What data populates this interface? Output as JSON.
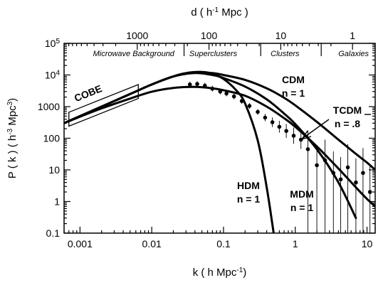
{
  "chart_data": {
    "type": "line",
    "xlabel": {
      "base": "k  ( h  Mpc",
      "sup": "-1",
      "tail": ")"
    },
    "ylabel": {
      "base": "P ( k )  ( h",
      "sup": "-3",
      "mid": " Mpc",
      "sup2": "3",
      "tail": ")"
    },
    "top_axis_label": {
      "base": "d  ( h",
      "sup": "-1",
      "tail": " Mpc )"
    },
    "x_scale": "log",
    "y_scale": "log",
    "xlim": [
      0.0006,
      13
    ],
    "ylim": [
      0.1,
      100000
    ],
    "x_ticks": [
      {
        "value": 0.001,
        "label": "0.001"
      },
      {
        "value": 0.01,
        "label": "0.01"
      },
      {
        "value": 0.1,
        "label": "0.1"
      },
      {
        "value": 1,
        "label": "1"
      },
      {
        "value": 10,
        "label": "10"
      }
    ],
    "y_ticks": [
      {
        "value": 0.1,
        "label": "0.1"
      },
      {
        "value": 1,
        "label": "1"
      },
      {
        "value": 10,
        "label": "10"
      },
      {
        "value": 100,
        "label": "100"
      },
      {
        "value": 1000,
        "label": "1000"
      },
      {
        "value": 10000,
        "label": "10",
        "sup": "4"
      },
      {
        "value": 100000,
        "label": "10",
        "sup": "5"
      }
    ],
    "top_ticks": [
      {
        "k": 0.00628,
        "label": "1000"
      },
      {
        "k": 0.0628,
        "label": "100"
      },
      {
        "k": 0.628,
        "label": "10"
      },
      {
        "k": 6.28,
        "label": "1"
      }
    ],
    "scale_regions": [
      {
        "text": "Microwave Background",
        "k": 0.0056
      },
      {
        "text": "Superclusters",
        "k": 0.072
      },
      {
        "text": "Clusters",
        "k": 0.72
      },
      {
        "text": "Galaxies",
        "k": 6.5
      }
    ],
    "cobe": {
      "label": "COBE",
      "k_range": [
        0.0007,
        0.0065
      ],
      "center_low": [
        400,
        3000
      ],
      "halfwidth_dex": 0.22
    },
    "series": [
      {
        "name": "CDM",
        "x": [
          0.0006,
          0.001,
          0.002,
          0.005,
          0.01,
          0.02,
          0.04,
          0.07,
          0.1,
          0.2,
          0.4,
          0.7,
          1,
          2,
          4,
          7,
          10,
          13
        ],
        "y": [
          300,
          500,
          1000,
          2500,
          5000,
          9000,
          12000,
          11500,
          10000,
          7000,
          3800,
          1900,
          1100,
          330,
          90,
          32,
          17,
          10
        ]
      },
      {
        "name": "TCDM",
        "x": [
          0.0006,
          0.001,
          0.002,
          0.005,
          0.01,
          0.02,
          0.04,
          0.07,
          0.1,
          0.2,
          0.4,
          0.7,
          1,
          2,
          4,
          7,
          10,
          13
        ],
        "y": [
          300,
          480,
          880,
          1800,
          2950,
          3900,
          4200,
          3800,
          3300,
          2200,
          1000,
          430,
          230,
          55,
          11,
          2.8,
          1.2,
          0.7
        ]
      },
      {
        "name": "MDM",
        "x": [
          0.0006,
          0.001,
          0.002,
          0.005,
          0.01,
          0.02,
          0.04,
          0.07,
          0.1,
          0.2,
          0.4,
          0.7,
          1,
          2,
          4,
          7
        ],
        "y": [
          300,
          500,
          1000,
          2500,
          5000,
          9000,
          11500,
          10000,
          8000,
          4300,
          1700,
          600,
          280,
          45,
          4,
          0.3
        ]
      },
      {
        "name": "HDM",
        "x": [
          0.0006,
          0.001,
          0.002,
          0.005,
          0.01,
          0.02,
          0.03,
          0.05,
          0.07,
          0.1,
          0.15,
          0.2,
          0.3,
          0.4,
          0.5
        ],
        "y": [
          300,
          500,
          1000,
          2500,
          5000,
          9000,
          11500,
          12500,
          11000,
          7500,
          3300,
          1250,
          85,
          2.8,
          0.1
        ]
      }
    ],
    "observations": {
      "x": [
        0.034,
        0.043,
        0.055,
        0.07,
        0.09,
        0.11,
        0.14,
        0.18,
        0.23,
        0.3,
        0.38,
        0.48,
        0.6,
        0.75,
        0.95,
        1.2,
        1.5,
        2,
        2.6,
        3.4,
        4.3,
        5.4,
        7,
        8.8,
        11
      ],
      "y": [
        5000,
        5200,
        4600,
        3700,
        3000,
        2600,
        2100,
        1500,
        1050,
        680,
        450,
        320,
        230,
        170,
        120,
        90,
        45,
        14,
        20,
        8,
        5,
        12,
        4,
        8,
        2
      ]
    },
    "annotations": [
      {
        "line1": "CDM",
        "line2": "n = 1"
      },
      {
        "line1": "TCDM",
        "line2": "n = .8"
      },
      {
        "line1": "HDM",
        "line2": "n = 1"
      },
      {
        "line1": "MDM",
        "line2": "n = 1"
      }
    ]
  }
}
